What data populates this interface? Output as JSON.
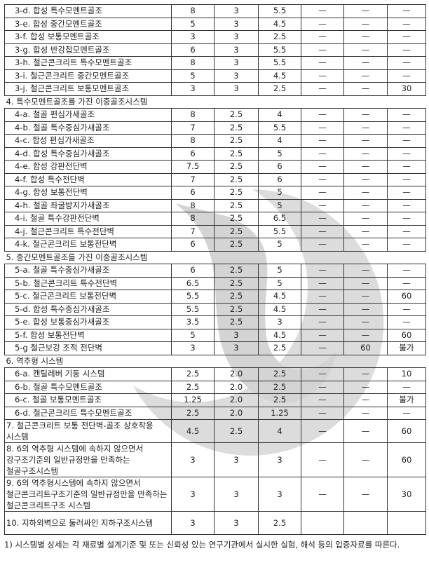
{
  "table": {
    "rows": [
      {
        "type": "item",
        "name": "3-d. 합성 특수모멘트골조",
        "v": [
          "8",
          "3",
          "5.5",
          "—",
          "—",
          "—"
        ]
      },
      {
        "type": "item",
        "name": "3-e. 합성 중간모멘트골조",
        "v": [
          "5",
          "3",
          "4.5",
          "—",
          "—",
          "—"
        ]
      },
      {
        "type": "item",
        "name": "3-f. 합성 보통모멘트골조",
        "v": [
          "3",
          "3",
          "2.5",
          "—",
          "—",
          "—"
        ]
      },
      {
        "type": "item",
        "name": "3-g. 합성 반강접모멘트골조",
        "v": [
          "6",
          "3",
          "5.5",
          "—",
          "—",
          "—"
        ]
      },
      {
        "type": "item",
        "name": "3-h. 철근콘크리트 특수모멘트골조",
        "v": [
          "8",
          "3",
          "5.5",
          "—",
          "—",
          "—"
        ]
      },
      {
        "type": "item",
        "name": "3-i. 철근콘크리트 중간모멘트골조",
        "v": [
          "5",
          "3",
          "4.5",
          "—",
          "—",
          "—"
        ]
      },
      {
        "type": "item",
        "name": "3-j. 철근콘크리트 보통모멘트골조",
        "v": [
          "3",
          "3",
          "2.5",
          "—",
          "—",
          "30"
        ]
      },
      {
        "type": "section",
        "name": "4. 특수모멘트골조를 가진 이중골조시스템"
      },
      {
        "type": "item",
        "name": "4-a. 철골 편심가새골조",
        "v": [
          "8",
          "2.5",
          "4",
          "—",
          "—",
          "—"
        ]
      },
      {
        "type": "item",
        "name": "4-b. 철골 특수중심가새골조",
        "v": [
          "7",
          "2.5",
          "5.5",
          "—",
          "—",
          "—"
        ]
      },
      {
        "type": "item",
        "name": "4-c. 합성 편심가새골조",
        "v": [
          "8",
          "2.5",
          "4",
          "—",
          "—",
          "—"
        ]
      },
      {
        "type": "item",
        "name": "4-d. 합성 특수중심가새골조",
        "v": [
          "6",
          "2.5",
          "5",
          "—",
          "—",
          "—"
        ]
      },
      {
        "type": "item",
        "name": "4-e. 합성 강판전단벽",
        "v": [
          "7.5",
          "2.5",
          "6",
          "—",
          "—",
          "—"
        ]
      },
      {
        "type": "item",
        "name": "4-f. 합성 특수전단벽",
        "v": [
          "7",
          "2.5",
          "6",
          "—",
          "—",
          "—"
        ]
      },
      {
        "type": "item",
        "name": "4-g. 합성 보통전단벽",
        "v": [
          "6",
          "2.5",
          "5",
          "—",
          "—",
          "—"
        ]
      },
      {
        "type": "item",
        "name": "4-h. 철골 좌굴방지가새골조",
        "v": [
          "8",
          "2.5",
          "5",
          "—",
          "—",
          "—"
        ]
      },
      {
        "type": "item",
        "name": "4-i. 철골 특수강판전단벽",
        "v": [
          "8",
          "2.5",
          "6.5",
          "—",
          "—",
          "—"
        ]
      },
      {
        "type": "item",
        "name": "4-j. 철근콘크리트 특수전단벽",
        "v": [
          "7",
          "2.5",
          "5.5",
          "—",
          "—",
          "—"
        ]
      },
      {
        "type": "item",
        "name": "4-k. 철근콘크리트 보통전단벽",
        "v": [
          "6",
          "2.5",
          "5",
          "—",
          "—",
          "—"
        ]
      },
      {
        "type": "section",
        "name": "5. 중간모멘트골조를 가진 이중골조시스템"
      },
      {
        "type": "item",
        "name": "5-a. 철골 특수중심가새골조",
        "v": [
          "6",
          "2.5",
          "5",
          "—",
          "—",
          "—"
        ]
      },
      {
        "type": "item",
        "name": "5-b. 철근콘크리트 특수전단벽",
        "v": [
          "6.5",
          "2.5",
          "5",
          "—",
          "—",
          "—"
        ]
      },
      {
        "type": "item",
        "name": "5-c. 철근콘크리트 보통전단벽",
        "v": [
          "5.5",
          "2.5",
          "4.5",
          "—",
          "—",
          "60"
        ]
      },
      {
        "type": "item",
        "name": "5-d. 합성 특수중심가새골조",
        "v": [
          "5.5",
          "2.5",
          "4.5",
          "—",
          "—",
          "—"
        ]
      },
      {
        "type": "item",
        "name": "5-e. 합성 보통중심가새골조",
        "v": [
          "3.5",
          "2.5",
          "3",
          "—",
          "—",
          "—"
        ]
      },
      {
        "type": "item",
        "name": "5-f. 합성 보통전단벽",
        "v": [
          "5",
          "3",
          "4.5",
          "—",
          "—",
          "60"
        ]
      },
      {
        "type": "item",
        "name": "5-g 철근보강 조적 전단벽",
        "v": [
          "3",
          "3",
          "2.5",
          "—",
          "60",
          "불가"
        ]
      },
      {
        "type": "section",
        "name": "6. 역추형 시스템"
      },
      {
        "type": "item",
        "name": "6-a. 캔틸레버 기둥 시스템",
        "v": [
          "2.5",
          "2.0",
          "2.5",
          "—",
          "—",
          "10"
        ]
      },
      {
        "type": "item",
        "name": "6-b. 철골 특수모멘트골조",
        "v": [
          "2.5",
          "2.0",
          "2.5",
          "—",
          "—",
          "—"
        ]
      },
      {
        "type": "item",
        "name": "6-c. 철골 보통모멘트골조",
        "v": [
          "1.25",
          "2.0",
          "2.5",
          "—",
          "—",
          "불가"
        ]
      },
      {
        "type": "item",
        "name": "6-d. 철근콘크리트 특수모멘트골조",
        "v": [
          "2.5",
          "2.0",
          "1.25",
          "—",
          "—",
          "—"
        ]
      },
      {
        "type": "multi",
        "lines": 2,
        "name": "7. 철근콘크리트 보통 전단벽-골조 상호작용 시스템",
        "v": [
          "4.5",
          "2.5",
          "4",
          "—",
          "—",
          "60"
        ]
      },
      {
        "type": "multi",
        "lines": 3,
        "name": "8. 6의 역추형 시스템에 속하지 않으면서 강구조기준의 일반규정만을 만족하는 철골구조시스템",
        "v": [
          "3",
          "3",
          "3",
          "—",
          "—",
          "60"
        ]
      },
      {
        "type": "multi",
        "lines": 3,
        "name": "9. 6의 역추형시스템에 속하지 않으면서 철근콘크리트구조기준의 일반규정만을 만족하는 철근콘크리트구조 시스템",
        "v": [
          "3",
          "3",
          "3",
          "—",
          "—",
          "30"
        ]
      },
      {
        "type": "multi",
        "lines": 2,
        "name": "10. 지하외벽으로 둘러싸인 지하구조시스템",
        "v": [
          "3",
          "3",
          "2.5",
          "",
          "",
          ""
        ]
      }
    ]
  },
  "footnote": "1) 시스템별 상세는 각 재료별 설계기준 및 또는 신뢰성 있는 연구기관에서 실시한 실험, 해석 등의 입증자료를 따른다.",
  "watermark_icon": "taegeuk-emblem-watermark"
}
